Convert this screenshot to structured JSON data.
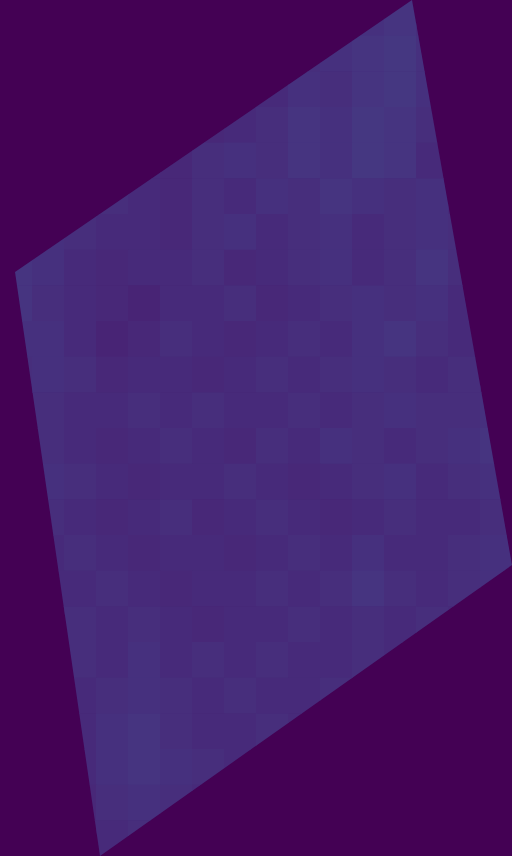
{
  "chart_data": {
    "type": "heatmap",
    "tick_labels": false,
    "zlim": [
      0,
      1
    ],
    "cells": [
      [
        null,
        null,
        null,
        null,
        null,
        null,
        null,
        null,
        null,
        null,
        null,
        0.14,
        0.15,
        0.13,
        null,
        null
      ],
      [
        null,
        null,
        null,
        null,
        null,
        null,
        null,
        null,
        null,
        0.13,
        0.14,
        0.15,
        0.16,
        0.14,
        null,
        null
      ],
      [
        null,
        null,
        null,
        null,
        null,
        null,
        null,
        null,
        0.12,
        0.14,
        0.13,
        0.15,
        0.16,
        0.14,
        null,
        null
      ],
      [
        null,
        null,
        null,
        null,
        null,
        null,
        0.11,
        0.12,
        0.13,
        0.15,
        0.14,
        0.16,
        0.15,
        0.13,
        null,
        null
      ],
      [
        null,
        null,
        null,
        null,
        0.12,
        0.11,
        0.13,
        0.14,
        0.13,
        0.15,
        0.14,
        0.16,
        0.15,
        0.12,
        null,
        null
      ],
      [
        null,
        null,
        null,
        0.13,
        0.12,
        0.11,
        0.13,
        0.12,
        0.14,
        0.13,
        0.15,
        0.14,
        0.13,
        0.14,
        0.12,
        null
      ],
      [
        null,
        0.14,
        0.13,
        0.12,
        0.12,
        0.11,
        0.13,
        0.14,
        0.12,
        0.13,
        0.14,
        0.12,
        0.13,
        0.14,
        0.13,
        null
      ],
      [
        0.15,
        0.14,
        0.12,
        0.11,
        0.12,
        0.12,
        0.13,
        0.11,
        0.12,
        0.13,
        0.14,
        0.12,
        0.13,
        0.15,
        0.13,
        null
      ],
      [
        0.15,
        0.13,
        0.12,
        0.11,
        0.1,
        0.12,
        0.12,
        0.13,
        0.11,
        0.12,
        0.13,
        0.14,
        0.13,
        0.14,
        0.12,
        null
      ],
      [
        0.14,
        0.14,
        0.12,
        0.1,
        0.11,
        0.13,
        0.12,
        0.11,
        0.12,
        0.13,
        0.12,
        0.14,
        0.15,
        0.13,
        0.12,
        null
      ],
      [
        0.13,
        0.14,
        0.13,
        0.11,
        0.12,
        0.12,
        0.11,
        0.12,
        0.13,
        0.12,
        0.13,
        0.14,
        0.13,
        0.12,
        0.13,
        0.12
      ],
      [
        null,
        0.13,
        0.12,
        0.12,
        0.13,
        0.12,
        0.13,
        0.12,
        0.12,
        0.13,
        0.12,
        0.13,
        0.14,
        0.13,
        0.13,
        0.14
      ],
      [
        null,
        0.13,
        0.12,
        0.11,
        0.12,
        0.13,
        0.12,
        0.11,
        0.13,
        0.12,
        0.14,
        0.13,
        0.12,
        0.13,
        0.14,
        0.15
      ],
      [
        null,
        0.14,
        0.13,
        0.12,
        0.11,
        0.12,
        0.12,
        0.13,
        0.12,
        0.11,
        0.12,
        0.13,
        0.14,
        0.12,
        0.13,
        0.14
      ],
      [
        null,
        0.13,
        0.12,
        0.11,
        0.12,
        0.13,
        0.11,
        0.12,
        0.13,
        0.12,
        0.11,
        0.12,
        0.13,
        0.12,
        0.12,
        0.13
      ],
      [
        null,
        0.12,
        0.13,
        0.12,
        0.11,
        0.12,
        0.12,
        0.11,
        0.12,
        0.13,
        0.12,
        0.14,
        0.12,
        0.12,
        0.13,
        0.14
      ],
      [
        null,
        0.12,
        0.12,
        0.13,
        0.12,
        0.11,
        0.12,
        0.12,
        0.13,
        0.12,
        0.13,
        0.15,
        0.13,
        0.12,
        0.13,
        0.14
      ],
      [
        null,
        0.12,
        0.13,
        0.12,
        0.13,
        0.12,
        0.11,
        0.12,
        0.12,
        0.13,
        0.12,
        0.13,
        0.12,
        0.13,
        0.12,
        null
      ],
      [
        null,
        null,
        0.13,
        0.12,
        0.14,
        0.12,
        0.13,
        0.12,
        0.13,
        0.12,
        0.12,
        0.13,
        0.12,
        null,
        null,
        null
      ],
      [
        null,
        null,
        0.12,
        0.13,
        0.14,
        0.13,
        0.12,
        0.13,
        0.12,
        0.12,
        0.13,
        0.12,
        null,
        null,
        null,
        null
      ],
      [
        null,
        null,
        0.12,
        0.14,
        0.15,
        0.13,
        0.12,
        0.12,
        0.13,
        0.12,
        null,
        null,
        null,
        null,
        null,
        null
      ],
      [
        null,
        null,
        0.12,
        0.14,
        0.15,
        0.14,
        0.13,
        0.12,
        null,
        null,
        null,
        null,
        null,
        null,
        null,
        null
      ],
      [
        null,
        null,
        0.11,
        0.13,
        0.14,
        0.13,
        0.12,
        null,
        null,
        null,
        null,
        null,
        null,
        null,
        null,
        null
      ],
      [
        null,
        null,
        0.11,
        0.12,
        0.13,
        null,
        null,
        null,
        null,
        null,
        null,
        null,
        null,
        null,
        null,
        null
      ]
    ]
  }
}
